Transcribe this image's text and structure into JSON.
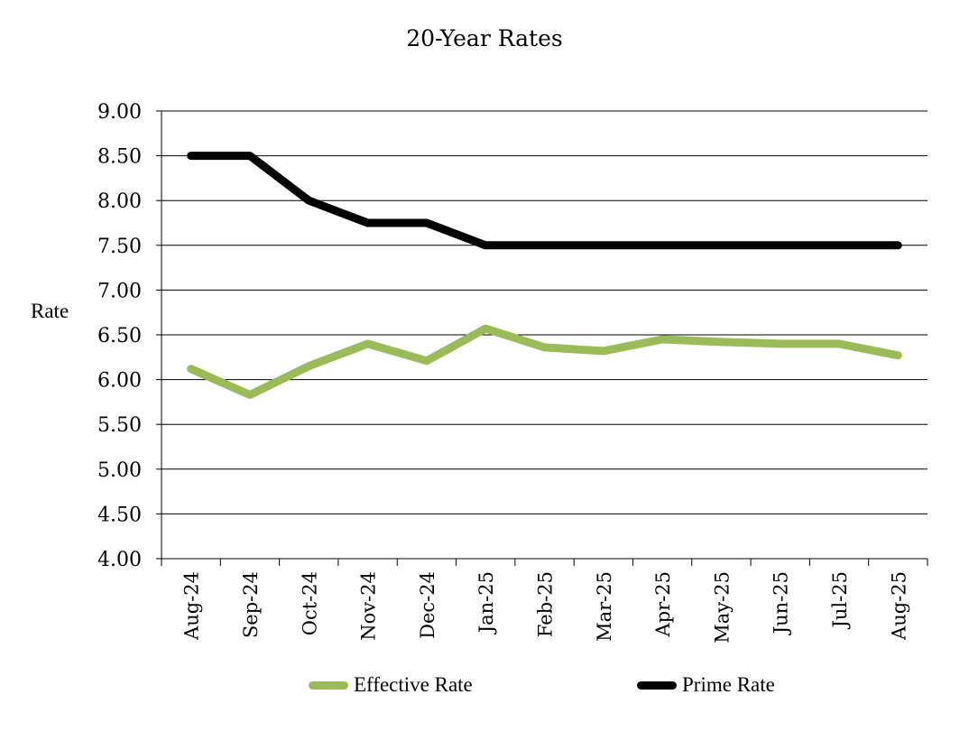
{
  "chart_data": {
    "type": "line",
    "title": "20-Year Rates",
    "ylabel": "Rate",
    "xlabel": "",
    "ylim": [
      4.0,
      9.0
    ],
    "yticks": [
      "4.00",
      "4.50",
      "5.00",
      "5.50",
      "6.00",
      "6.50",
      "7.00",
      "7.50",
      "8.00",
      "8.50",
      "9.00"
    ],
    "categories": [
      "Aug-24",
      "Sep-24",
      "Oct-24",
      "Nov-24",
      "Dec-24",
      "Jan-25",
      "Feb-25",
      "Mar-25",
      "Apr-25",
      "May-25",
      "Jun-25",
      "Jul-25",
      "Aug-25"
    ],
    "grid": true,
    "legend_position": "bottom",
    "series": [
      {
        "name": "Effective Rate",
        "color": "#9bbb59",
        "values": [
          6.12,
          5.83,
          6.15,
          6.4,
          6.21,
          6.57,
          6.36,
          6.32,
          6.45,
          6.42,
          6.4,
          6.4,
          6.27
        ]
      },
      {
        "name": "Prime Rate",
        "color": "#000000",
        "values": [
          8.5,
          8.5,
          8.0,
          7.75,
          7.75,
          7.5,
          7.5,
          7.5,
          7.5,
          7.5,
          7.5,
          7.5,
          7.5
        ]
      }
    ]
  }
}
